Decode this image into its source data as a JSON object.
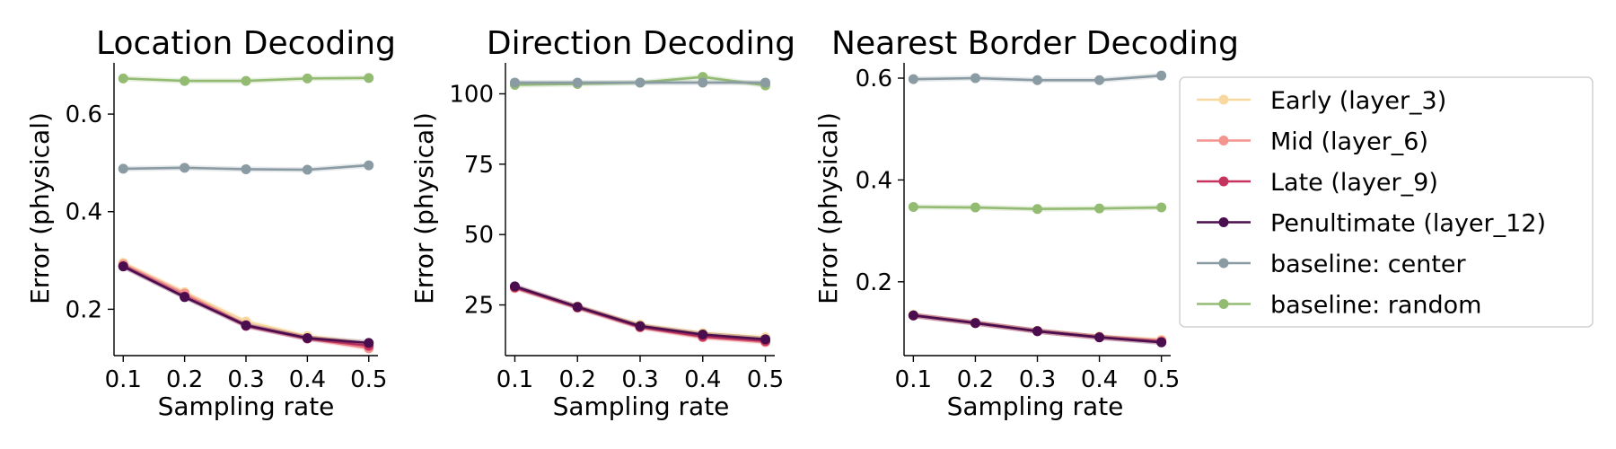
{
  "legend": {
    "placement": "right",
    "entries": [
      {
        "key": "early",
        "label": "Early (layer_3)",
        "color": "#f7d9a0"
      },
      {
        "key": "mid",
        "label": "Mid (layer_6)",
        "color": "#f4948f"
      },
      {
        "key": "late",
        "label": "Late (layer_9)",
        "color": "#c6335f"
      },
      {
        "key": "penultimate",
        "label": "Penultimate (layer_12)",
        "color": "#4a0e4e"
      },
      {
        "key": "center",
        "label": "baseline: center",
        "color": "#8a9ba3"
      },
      {
        "key": "random",
        "label": "baseline: random",
        "color": "#93bc72"
      }
    ]
  },
  "chart_data": [
    {
      "type": "line",
      "title": "Location Decoding",
      "xlabel": "Sampling rate",
      "ylabel": "Error (physical)",
      "x": [
        0.1,
        0.2,
        0.3,
        0.4,
        0.5
      ],
      "x_ticks": [
        "0.1",
        "0.2",
        "0.3",
        "0.4",
        "0.5"
      ],
      "xlim": [
        0.085,
        0.515
      ],
      "ylim": [
        0.105,
        0.705
      ],
      "y_ticks": [
        0.2,
        0.4,
        0.6
      ],
      "y_tick_labels": [
        "0.2",
        "0.4",
        "0.6"
      ],
      "grid": false,
      "series": [
        {
          "key": "early",
          "values": [
            0.295,
            0.235,
            0.175,
            0.145,
            0.13
          ]
        },
        {
          "key": "mid",
          "values": [
            0.292,
            0.232,
            0.168,
            0.14,
            0.12
          ]
        },
        {
          "key": "late",
          "values": [
            0.288,
            0.226,
            0.166,
            0.14,
            0.125
          ]
        },
        {
          "key": "penultimate",
          "values": [
            0.288,
            0.225,
            0.167,
            0.141,
            0.131
          ]
        },
        {
          "key": "center",
          "values": [
            0.488,
            0.49,
            0.487,
            0.486,
            0.495
          ]
        },
        {
          "key": "random",
          "values": [
            0.673,
            0.668,
            0.668,
            0.673,
            0.674
          ]
        }
      ]
    },
    {
      "type": "line",
      "title": "Direction Decoding",
      "xlabel": "Sampling rate",
      "ylabel": "Error (physical)",
      "x": [
        0.1,
        0.2,
        0.3,
        0.4,
        0.5
      ],
      "x_ticks": [
        "0.1",
        "0.2",
        "0.3",
        "0.4",
        "0.5"
      ],
      "xlim": [
        0.085,
        0.515
      ],
      "ylim": [
        7,
        111
      ],
      "y_ticks": [
        25,
        50,
        75,
        100
      ],
      "y_tick_labels": [
        "25",
        "50",
        "75",
        "100"
      ],
      "grid": false,
      "series": [
        {
          "key": "early",
          "values": [
            31.5,
            24.5,
            18.0,
            15.0,
            13.5
          ]
        },
        {
          "key": "mid",
          "values": [
            31.0,
            24.0,
            17.0,
            13.5,
            11.8
          ]
        },
        {
          "key": "late",
          "values": [
            31.3,
            24.2,
            17.2,
            13.8,
            12.2
          ]
        },
        {
          "key": "penultimate",
          "values": [
            31.6,
            24.3,
            17.5,
            14.5,
            12.8
          ]
        },
        {
          "key": "center",
          "values": [
            104.0,
            104.0,
            104.0,
            104.0,
            104.0
          ]
        },
        {
          "key": "random",
          "values": [
            103.2,
            103.5,
            104.0,
            106.0,
            103.0
          ]
        }
      ]
    },
    {
      "type": "line",
      "title": "Nearest Border Decoding",
      "xlabel": "Sampling rate",
      "ylabel": "Error (physical)",
      "x": [
        0.1,
        0.2,
        0.3,
        0.4,
        0.5
      ],
      "x_ticks": [
        "0.1",
        "0.2",
        "0.3",
        "0.4",
        "0.5"
      ],
      "xlim": [
        0.085,
        0.515
      ],
      "ylim": [
        0.055,
        0.63
      ],
      "y_ticks": [
        0.2,
        0.4,
        0.6
      ],
      "y_tick_labels": [
        "0.2",
        "0.4",
        "0.6"
      ],
      "grid": false,
      "series": [
        {
          "key": "early",
          "values": [
            0.135,
            0.12,
            0.104,
            0.093,
            0.086
          ]
        },
        {
          "key": "mid",
          "values": [
            0.134,
            0.119,
            0.103,
            0.091,
            0.084
          ]
        },
        {
          "key": "late",
          "values": [
            0.134,
            0.119,
            0.103,
            0.091,
            0.082
          ]
        },
        {
          "key": "penultimate",
          "values": [
            0.134,
            0.119,
            0.103,
            0.091,
            0.081
          ]
        },
        {
          "key": "center",
          "values": [
            0.598,
            0.6,
            0.596,
            0.596,
            0.605
          ]
        },
        {
          "key": "random",
          "values": [
            0.347,
            0.346,
            0.343,
            0.344,
            0.346
          ]
        }
      ]
    }
  ]
}
